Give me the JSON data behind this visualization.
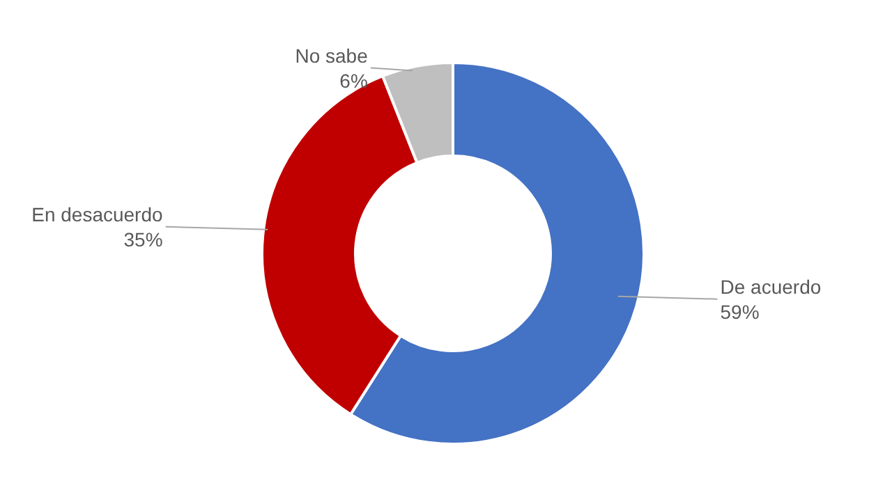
{
  "chart_data": {
    "type": "donut",
    "categories": [
      "De acuerdo",
      "En desacuerdo",
      "No sabe"
    ],
    "values": [
      59,
      35,
      6
    ],
    "colors": [
      "#4472c4",
      "#c00000",
      "#bfbfbf"
    ],
    "value_labels": [
      "59%",
      "35%",
      "6%"
    ]
  }
}
